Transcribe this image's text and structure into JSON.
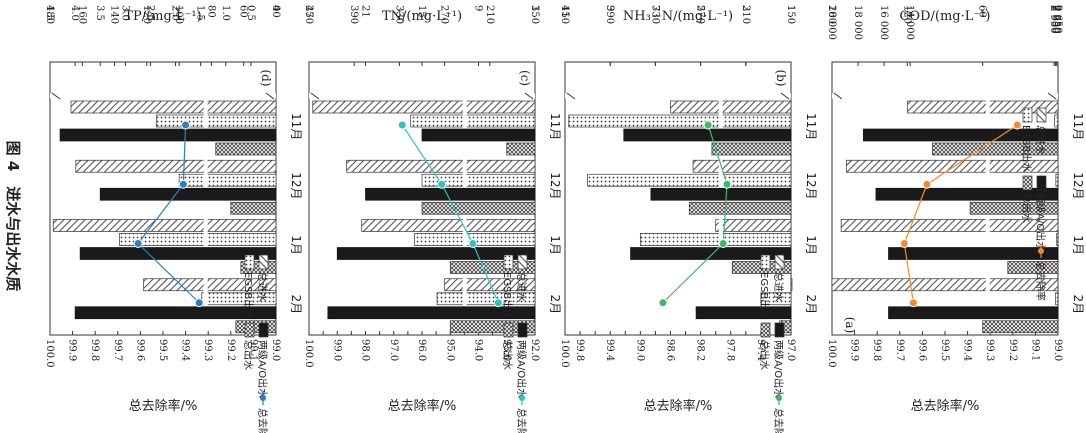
{
  "figure": {
    "caption": "图 4　进水与出水水质"
  },
  "colors": {
    "axis": "#333333",
    "totalIn": "#8a8a8a",
    "egsb": "#f0f0f0",
    "ao": "#1a1a1a",
    "totalOut": "#8a8a8a",
    "lineA": "#f28a30",
    "lineB": "#2ec4b6",
    "lineC": "#3cb86b",
    "lineD": "#2a7fc2"
  },
  "chart_data": [
    {
      "type": "bar",
      "panel": "(a)",
      "title": "COD/(mg·L⁻¹)",
      "ylabel": "总去除率/%",
      "categories": [
        "11月",
        "12月",
        "1月",
        "2月"
      ],
      "legend": [
        "总进水",
        "EGSB出水",
        "两级A/O出水",
        "总出水",
        "总去除率"
      ],
      "conc_lower_ticks": [
        "0",
        "60",
        "120",
        "180"
      ],
      "conc_upper_ticks": [
        "2 650",
        "2 750",
        "2 850",
        "2 950",
        "14 000",
        "16 000",
        "18 000",
        "20 000"
      ],
      "removal_ticks": [
        "99.0",
        "99.1",
        "99.2",
        "99.3",
        "99.4",
        "99.5",
        "99.6",
        "99.7",
        "99.8",
        "99.9",
        "100.0"
      ],
      "removal_range": [
        99.0,
        100.0
      ],
      "series": [
        {
          "name": "总进水",
          "values": [
            14200,
            18900,
            19300,
            20000
          ]
        },
        {
          "name": "EGSB出水",
          "values": [
            2905,
            2815,
            2750,
            2835
          ]
        },
        {
          "name": "两级A/O出水",
          "values": [
            155,
            145,
            135,
            135
          ]
        },
        {
          "name": "总出水",
          "values": [
            100,
            70,
            40,
            60
          ]
        },
        {
          "name": "总去除率",
          "values": [
            99.18,
            99.58,
            99.68,
            99.64
          ]
        }
      ]
    },
    {
      "type": "bar",
      "panel": "(b)",
      "title": "NH₃−N/(mg·L⁻¹)",
      "ylabel": "总去除率/%",
      "categories": [
        "11月",
        "12月",
        "1月",
        "2月"
      ],
      "legend": [
        "总进水",
        "EGSB出水",
        "两级A/O出水",
        "总出水",
        "总去除率"
      ],
      "conc_lower_ticks": [
        "1",
        "3",
        "5",
        "7",
        "9",
        "11"
      ],
      "conc_upper_ticks": [
        "150",
        "210",
        "270",
        "330",
        "390",
        "450"
      ],
      "removal_ticks": [
        "97.0",
        "97.2",
        "97.4",
        "97.6",
        "97.8",
        "98.0",
        "98.2",
        "98.4",
        "98.6",
        "98.8",
        "99.0",
        "99.2",
        "99.4",
        "99.6",
        "99.8",
        "100.0"
      ],
      "removal_range": [
        97.0,
        100.0
      ],
      "series": [
        {
          "name": "总进水",
          "values": [
            310,
            280,
            250,
            150
          ]
        },
        {
          "name": "EGSB出水",
          "values": [
            445,
            420,
            350,
            190
          ]
        },
        {
          "name": "两级A/O出水",
          "values": [
            8.4,
            7.2,
            8.1,
            5.2
          ]
        },
        {
          "name": "总出水",
          "values": [
            4.5,
            5.5,
            3.6,
            1.5
          ]
        },
        {
          "name": "总去除率",
          "values": [
            98.1,
            97.85,
            97.9,
            98.7
          ]
        }
      ]
    },
    {
      "type": "bar",
      "panel": "(c)",
      "title": "TN/(mg·L⁻¹)",
      "ylabel": "总去除率/%",
      "categories": [
        "11月",
        "12月",
        "1月",
        "2月"
      ],
      "legend": [
        "总进水",
        "EGSB出水",
        "两级A/O出水",
        "总出水",
        "总去除率"
      ],
      "conc_lower_ticks": [
        "3",
        "9",
        "15",
        "21",
        "27"
      ],
      "conc_upper_ticks": [
        "150",
        "210",
        "270",
        "330",
        "390",
        "450"
      ],
      "removal_ticks": [
        "92.0",
        "92.5",
        "93.0",
        "93.5",
        "94.0",
        "94.5",
        "95.0",
        "95.5",
        "96.0",
        "96.5",
        "97.0",
        "97.5",
        "98.0",
        "98.5",
        "99.0",
        "99.5",
        "100.0"
      ],
      "removal_range": [
        92.0,
        100.0
      ],
      "series": [
        {
          "name": "总进水",
          "values": [
            445,
            400,
            380,
            270
          ]
        },
        {
          "name": "EGSB出水",
          "values": [
            315,
            300,
            310,
            280
          ]
        },
        {
          "name": "两级A/O出水",
          "values": [
            15,
            21,
            24,
            25
          ]
        },
        {
          "name": "总出水",
          "values": [
            6,
            15,
            12,
            12
          ]
        },
        {
          "name": "总去除率",
          "values": [
            96.7,
            95.3,
            94.2,
            93.3
          ]
        }
      ]
    },
    {
      "type": "bar",
      "panel": "(d)",
      "title": "TP/(mg·L⁻¹)",
      "ylabel": "总去除率/%",
      "categories": [
        "11月",
        "12月",
        "1月",
        "2月"
      ],
      "legend": [
        "总进水",
        "EGSB出水",
        "两级A/O出水",
        "总出水",
        "总去除率"
      ],
      "conc_lower_ticks": [
        "0",
        "0.5",
        "1.0",
        "1.5",
        "2.0",
        "2.5",
        "3.0",
        "3.5",
        "4.0",
        "4.5"
      ],
      "conc_upper_ticks": [
        "40",
        "60",
        "80",
        "100",
        "120",
        "140",
        "160",
        "180"
      ],
      "removal_ticks": [
        "99.0",
        "99.1",
        "99.2",
        "99.3",
        "99.4",
        "99.5",
        "99.6",
        "99.7",
        "99.8",
        "99.9",
        "100.0"
      ],
      "removal_range": [
        99.0,
        100.0
      ],
      "series": [
        {
          "name": "总进水",
          "values": [
            167,
            164,
            178,
            122
          ]
        },
        {
          "name": "EGSB出水",
          "values": [
            114,
            100,
            137,
            86
          ]
        },
        {
          "name": "两级A/O出水",
          "values": [
            4.3,
            3.5,
            3.9,
            4.0
          ]
        },
        {
          "name": "总出水",
          "values": [
            1.2,
            0.9,
            0.7,
            0.8
          ]
        },
        {
          "name": "总去除率",
          "values": [
            99.4,
            99.41,
            99.61,
            99.34
          ]
        }
      ]
    }
  ]
}
